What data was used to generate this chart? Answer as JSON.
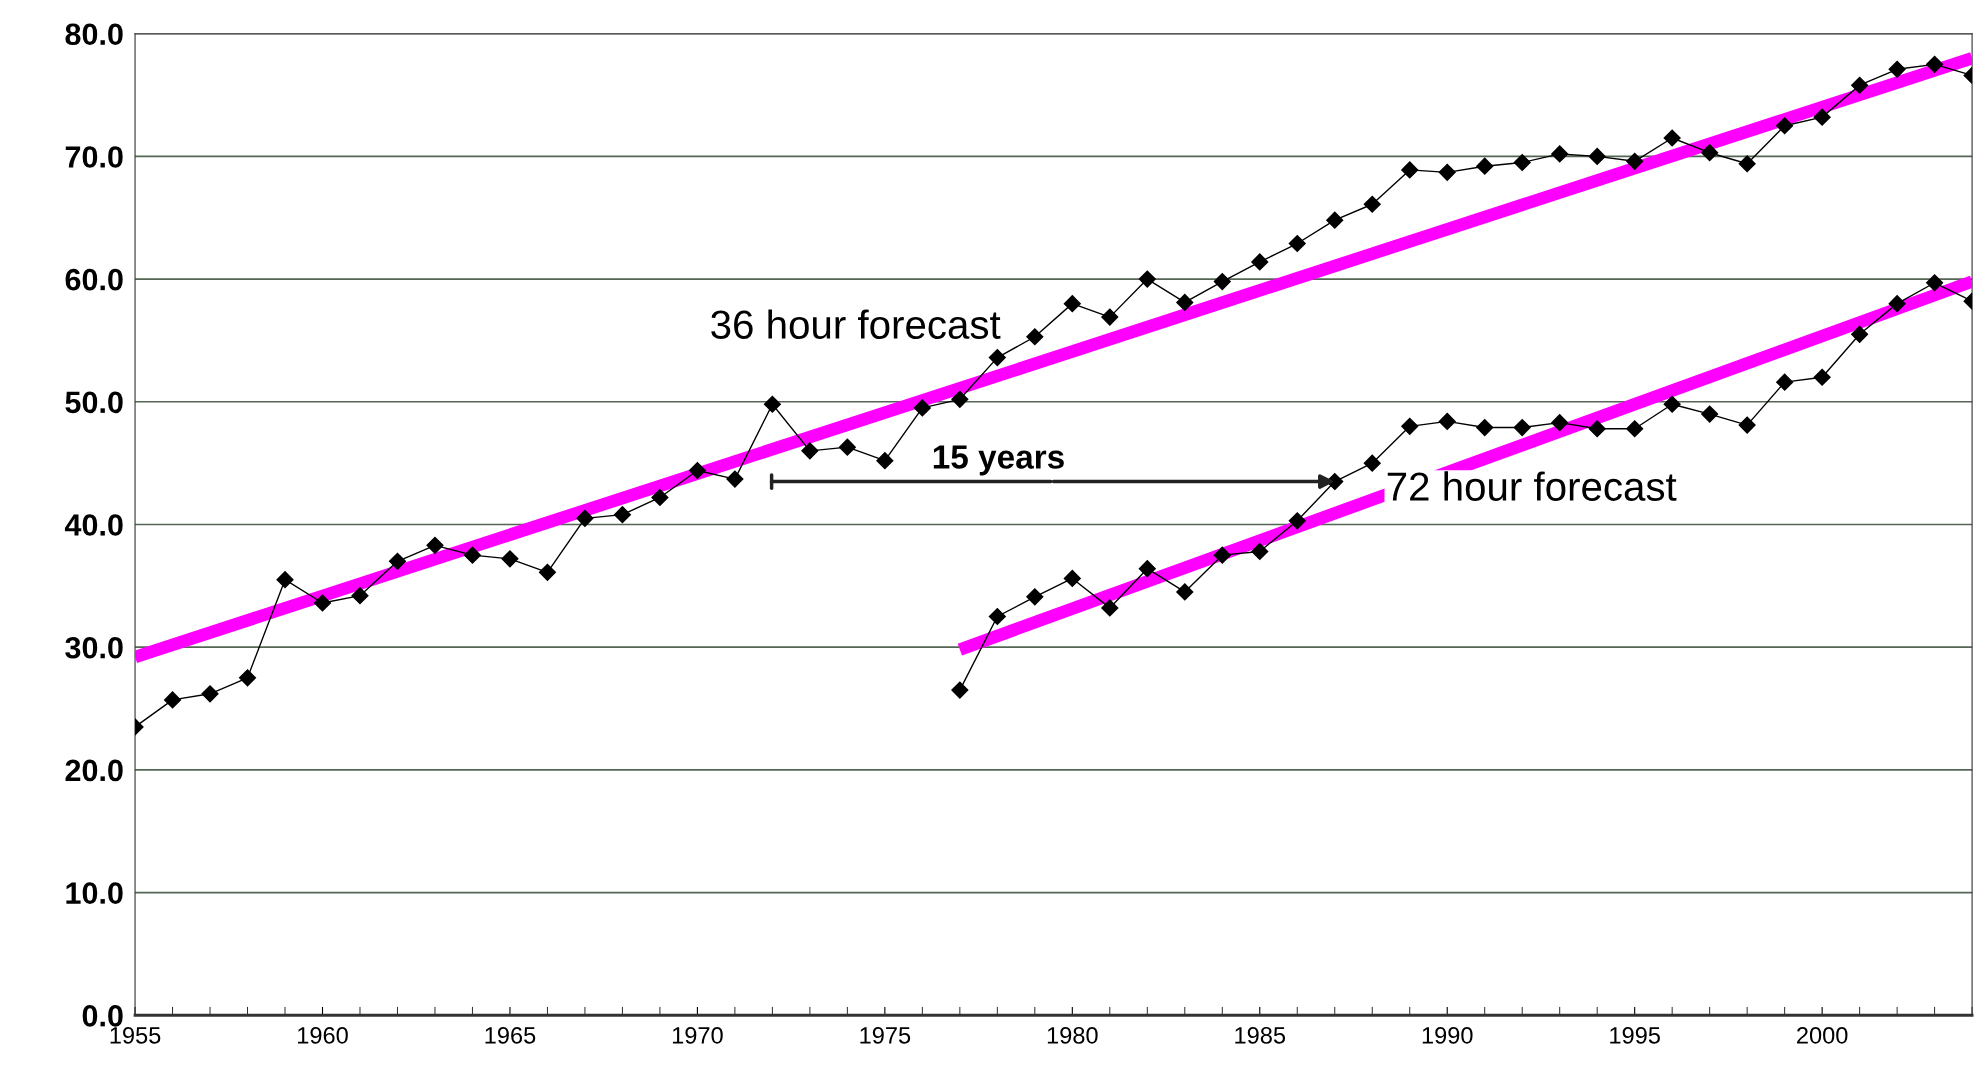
{
  "chart_data": {
    "type": "line",
    "xlim": [
      1955,
      2004
    ],
    "xticks": [
      1955,
      1960,
      1965,
      1970,
      1975,
      1980,
      1985,
      1990,
      1995,
      2000
    ],
    "ylim": [
      0,
      80
    ],
    "yticks": [
      {
        "value": 0,
        "label": "0.0"
      },
      {
        "value": 10,
        "label": "10.0"
      },
      {
        "value": 20,
        "label": "20.0"
      },
      {
        "value": 30,
        "label": "30.0"
      },
      {
        "value": 40,
        "label": "40.0"
      },
      {
        "value": 50,
        "label": "50.0"
      },
      {
        "value": 60,
        "label": "60.0"
      },
      {
        "value": 70,
        "label": "70.0"
      },
      {
        "value": 80,
        "label": "80.0"
      }
    ],
    "grid": "y",
    "legend": false,
    "marker": "diamond",
    "line_style": "solid",
    "series": [
      {
        "color": "#000000",
        "x": [
          1955,
          1956,
          1957,
          1958,
          1959,
          1960,
          1961,
          1962,
          1963,
          1964,
          1965,
          1966,
          1967,
          1968,
          1969,
          1970,
          1971,
          1972,
          1973,
          1974,
          1975,
          1976,
          1977,
          1978,
          1979,
          1980,
          1981,
          1982,
          1983,
          1984,
          1985,
          1986,
          1987,
          1988,
          1989,
          1990,
          1991,
          1992,
          1993,
          1994,
          1995,
          1996,
          1997,
          1998,
          1999,
          2000,
          2001,
          2002,
          2003,
          2004
        ],
        "values": [
          23.5,
          25.7,
          26.2,
          27.5,
          35.5,
          33.6,
          34.2,
          37.0,
          38.3,
          37.5,
          37.2,
          36.1,
          40.5,
          40.8,
          42.2,
          44.4,
          43.7,
          49.8,
          46.0,
          46.3,
          45.2,
          49.5,
          50.2,
          53.6,
          55.3,
          58.0,
          56.9,
          60.0,
          58.1,
          59.8,
          61.4,
          62.9,
          64.8,
          66.1,
          68.9,
          68.7,
          69.2,
          69.5,
          70.2,
          70.0,
          69.6,
          71.5,
          70.3,
          69.4,
          72.5,
          73.2,
          75.8,
          77.1,
          77.5,
          76.6
        ]
      },
      {
        "color": "#000000",
        "x": [
          1977,
          1978,
          1979,
          1980,
          1981,
          1982,
          1983,
          1984,
          1985,
          1986,
          1987,
          1988,
          1989,
          1990,
          1991,
          1992,
          1993,
          1994,
          1995,
          1996,
          1997,
          1998,
          1999,
          2000,
          2001,
          2002,
          2003,
          2004
        ],
        "values": [
          26.5,
          32.5,
          34.1,
          35.6,
          33.2,
          36.4,
          34.5,
          37.5,
          37.8,
          40.3,
          43.5,
          45.0,
          48.0,
          48.4,
          47.9,
          47.9,
          48.3,
          47.8,
          47.8,
          49.8,
          49.0,
          48.1,
          51.6,
          52.0,
          55.5,
          58.0,
          59.7,
          58.2
        ]
      },
      {
        "type": "line",
        "marker": "none",
        "color": "#ff00ff",
        "x": [
          1955,
          2004
        ],
        "values": [
          29.2,
          78.0
        ]
      },
      {
        "type": "line",
        "marker": "none",
        "color": "#ff00ff",
        "x": [
          1977,
          2004
        ],
        "values": [
          29.8,
          59.8
        ]
      }
    ],
    "annotations": [
      "36 hour forecast",
      "72 hour forecast",
      {
        "text": "15 years",
        "x": 1987,
        "y": 43.5
      }
    ]
  }
}
